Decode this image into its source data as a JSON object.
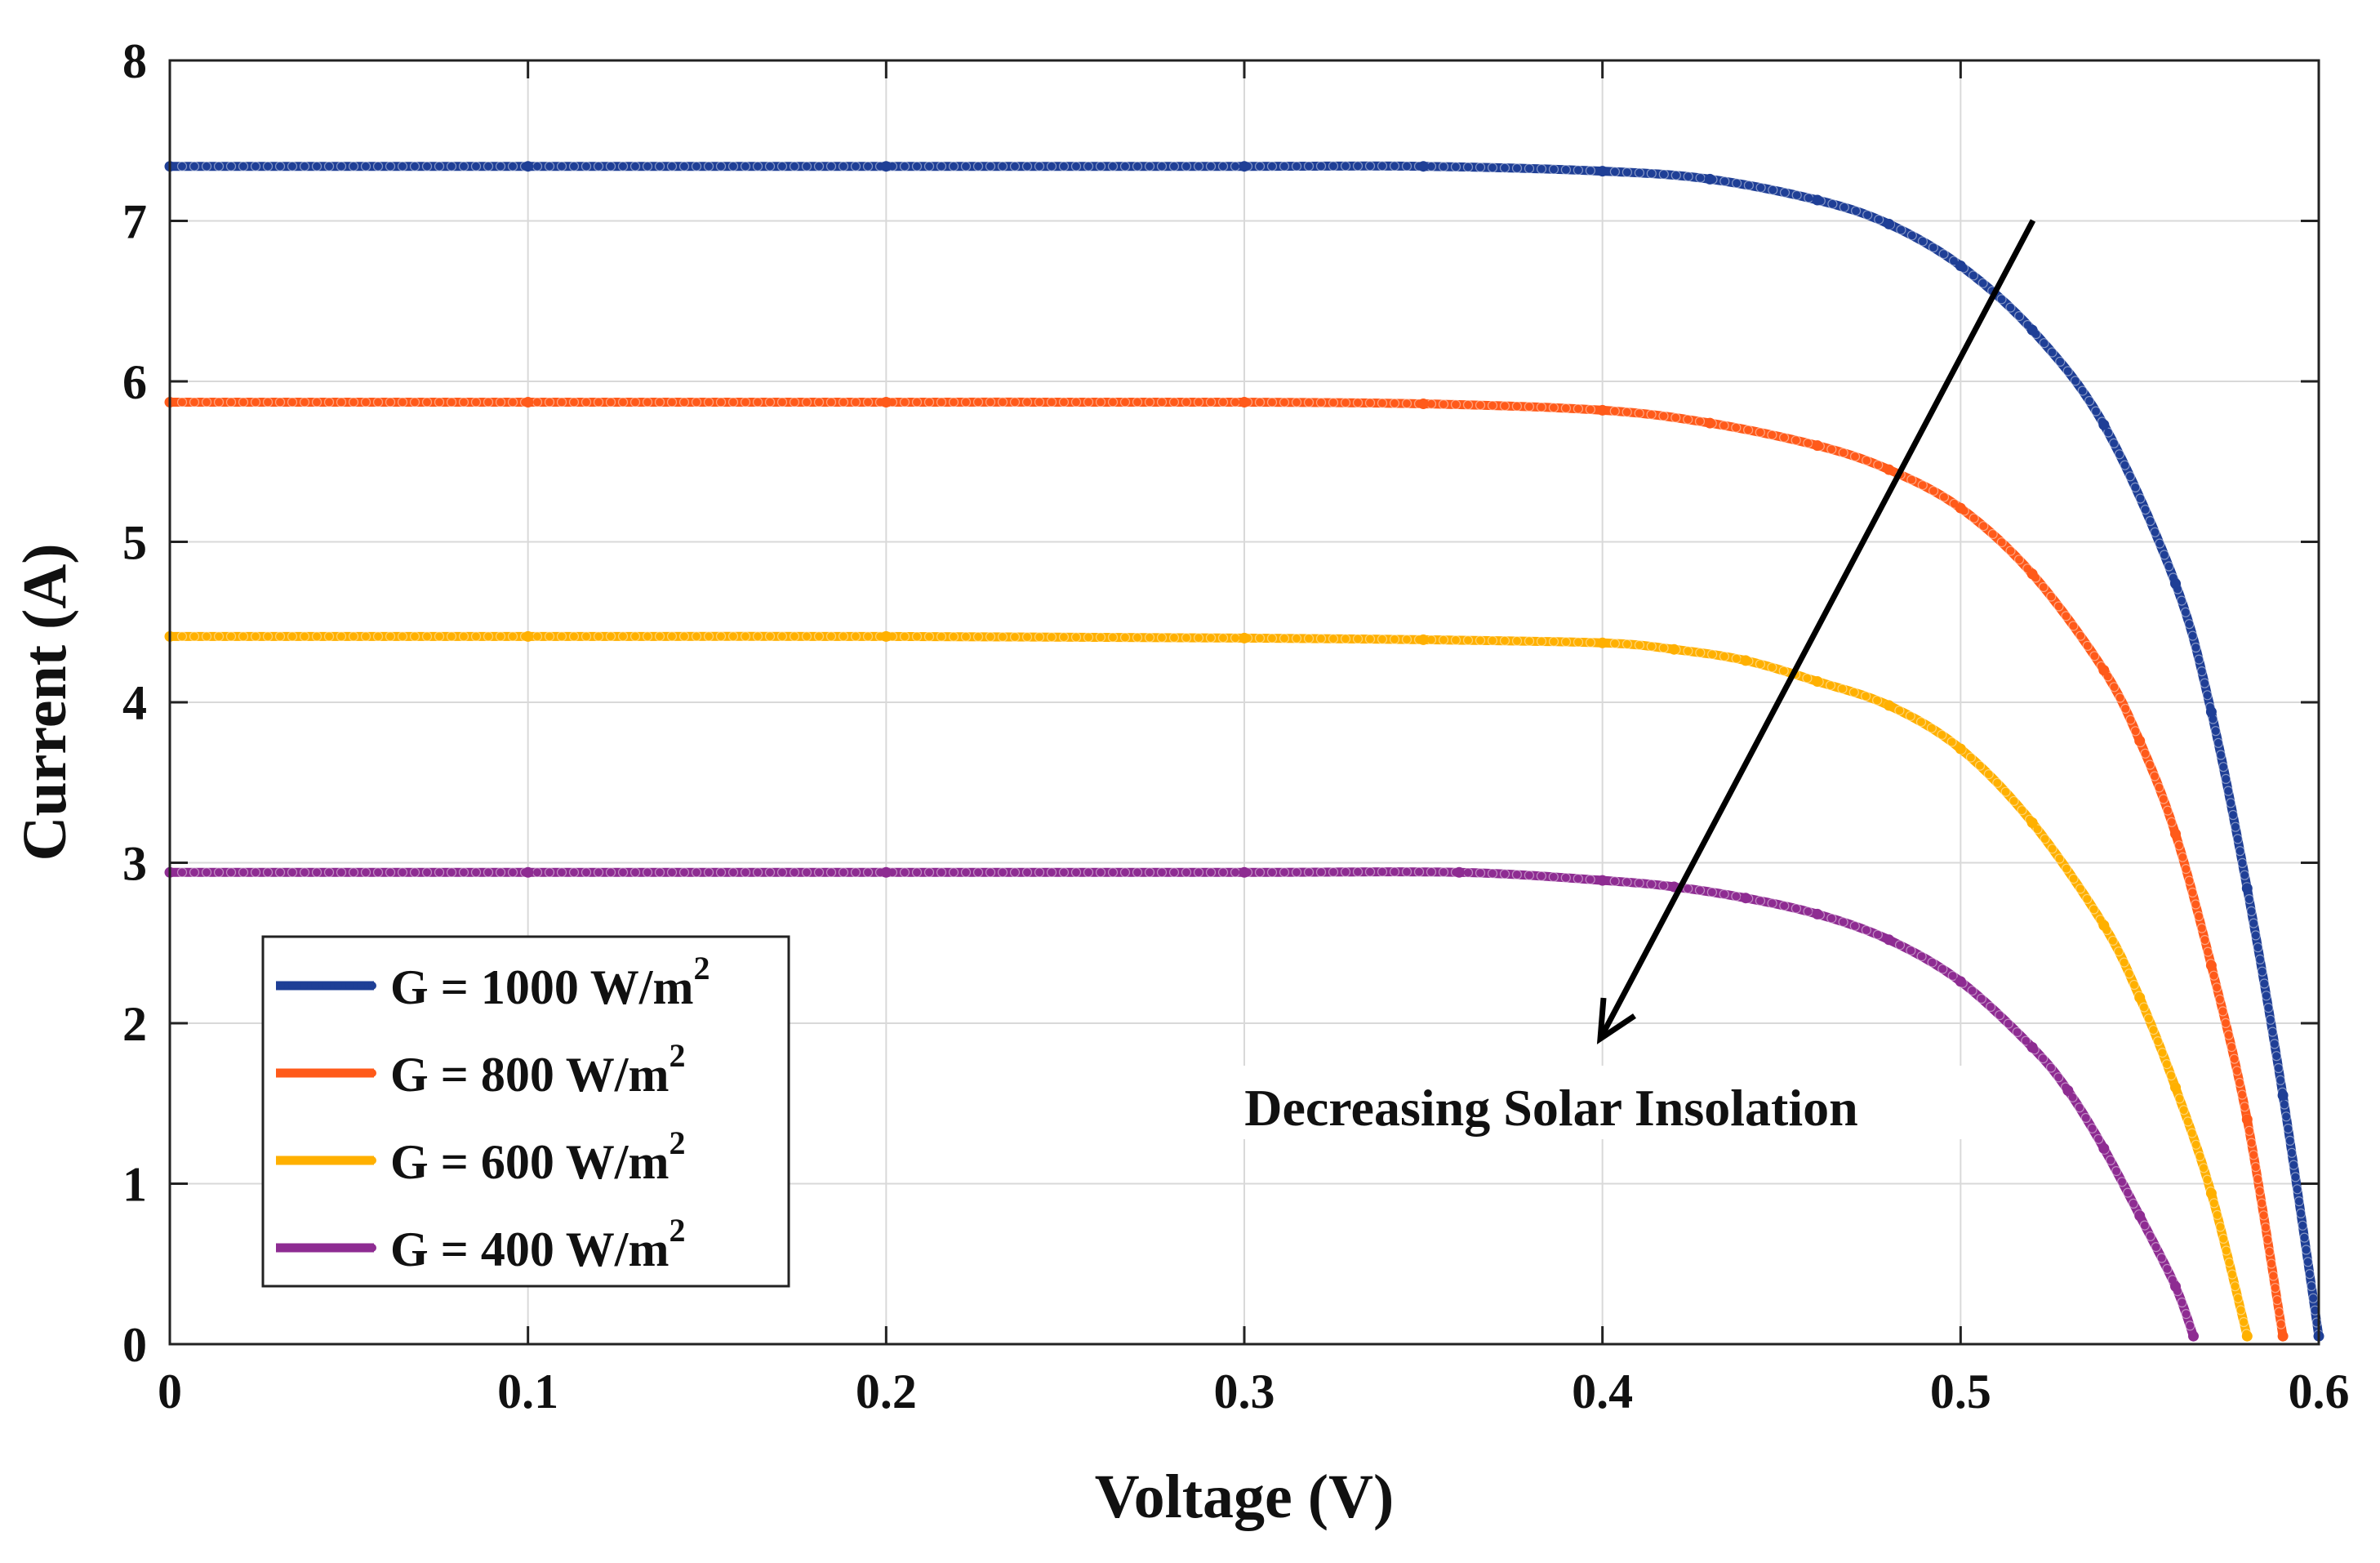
{
  "chart_data": {
    "type": "line",
    "title": "",
    "xlabel": "Voltage (V)",
    "ylabel": "Current (A)",
    "xlim": [
      0,
      0.6
    ],
    "ylim": [
      0,
      8
    ],
    "x_ticks": [
      "0",
      "0.1",
      "0.2",
      "0.3",
      "0.4",
      "0.5",
      "0.6"
    ],
    "y_ticks": [
      "0",
      "1",
      "2",
      "3",
      "4",
      "5",
      "6",
      "7",
      "8"
    ],
    "grid": true,
    "legend_position": "bottom-left",
    "annotation": "Decreasing Solar Insolation",
    "series": [
      {
        "name_prefix": "G = 1000 W/m",
        "name_sup": "2",
        "color": "#1f3f96",
        "marker": "star",
        "x": [
          0,
          0.1,
          0.2,
          0.3,
          0.35,
          0.4,
          0.43,
          0.46,
          0.48,
          0.5,
          0.52,
          0.54,
          0.56,
          0.57,
          0.58,
          0.59,
          0.6
        ],
        "y": [
          7.34,
          7.34,
          7.34,
          7.34,
          7.34,
          7.31,
          7.26,
          7.13,
          6.98,
          6.72,
          6.32,
          5.73,
          4.74,
          3.94,
          2.84,
          1.55,
          0.05
        ]
      },
      {
        "name_prefix": "G = 800 W/m",
        "name_sup": "2",
        "color": "#ff5a1a",
        "marker": "star",
        "x": [
          0,
          0.1,
          0.2,
          0.3,
          0.35,
          0.4,
          0.43,
          0.46,
          0.48,
          0.5,
          0.52,
          0.54,
          0.55,
          0.56,
          0.57,
          0.58,
          0.59
        ],
        "y": [
          5.87,
          5.87,
          5.87,
          5.87,
          5.86,
          5.82,
          5.74,
          5.6,
          5.45,
          5.21,
          4.8,
          4.2,
          3.76,
          3.18,
          2.36,
          1.4,
          0.05
        ]
      },
      {
        "name_prefix": "G = 600 W/m",
        "name_sup": "2",
        "color": "#ffb000",
        "marker": "star",
        "x": [
          0,
          0.1,
          0.2,
          0.3,
          0.35,
          0.4,
          0.42,
          0.44,
          0.46,
          0.48,
          0.5,
          0.52,
          0.54,
          0.55,
          0.56,
          0.57,
          0.58
        ],
        "y": [
          4.41,
          4.41,
          4.41,
          4.4,
          4.39,
          4.37,
          4.33,
          4.26,
          4.13,
          3.98,
          3.71,
          3.25,
          2.61,
          2.16,
          1.6,
          0.94,
          0.05
        ]
      },
      {
        "name_prefix": "G = 400 W/m",
        "name_sup": "2",
        "color": "#8e2c92",
        "marker": "star",
        "x": [
          0,
          0.1,
          0.2,
          0.3,
          0.36,
          0.4,
          0.42,
          0.44,
          0.46,
          0.48,
          0.5,
          0.52,
          0.53,
          0.54,
          0.55,
          0.56,
          0.565
        ],
        "y": [
          2.94,
          2.94,
          2.94,
          2.94,
          2.94,
          2.89,
          2.85,
          2.78,
          2.68,
          2.52,
          2.26,
          1.85,
          1.58,
          1.22,
          0.8,
          0.36,
          0.05
        ]
      }
    ]
  }
}
